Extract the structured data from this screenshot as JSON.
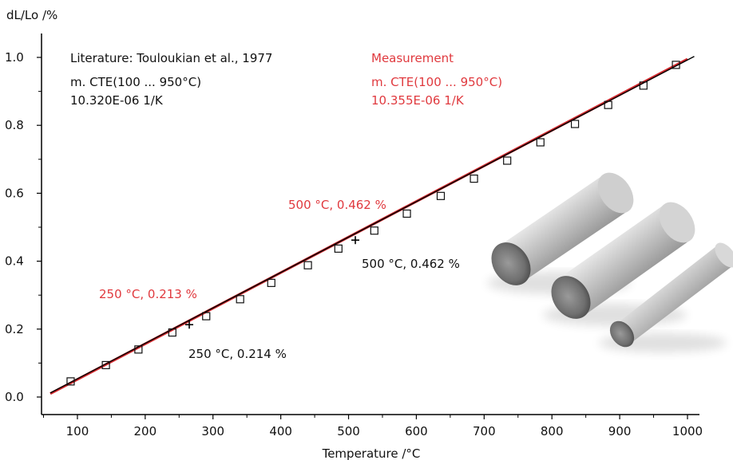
{
  "chart_data": {
    "type": "line",
    "title": "",
    "xlabel": "Temperature /°C",
    "ylabel": "dL/Lo /%",
    "xlim": [
      50,
      1010
    ],
    "ylim": [
      -0.02,
      1.06
    ],
    "x_ticks": [
      100,
      200,
      300,
      400,
      500,
      600,
      700,
      800,
      900,
      1000
    ],
    "x_tick_labels": [
      "100",
      "200",
      "300",
      "400",
      "500",
      "600",
      "700",
      "800",
      "900",
      "1000"
    ],
    "y_ticks": [
      0.0,
      0.2,
      0.4,
      0.6,
      0.8,
      1.0
    ],
    "y_tick_labels": [
      "0.0",
      "0.2",
      "0.4",
      "0.6",
      "0.8",
      "1.0"
    ],
    "grid": false,
    "series": [
      {
        "role": "literature",
        "color": "#000000",
        "style": "line with square markers",
        "x": [
          90,
          142,
          190,
          240,
          290,
          340,
          386,
          440,
          485,
          538,
          586,
          636,
          685,
          734,
          783,
          834,
          883,
          935,
          983
        ],
        "y": [
          0.046,
          0.094,
          0.14,
          0.19,
          0.238,
          0.288,
          0.336,
          0.388,
          0.437,
          0.49,
          0.54,
          0.592,
          0.643,
          0.696,
          0.75,
          0.804,
          0.86,
          0.917,
          0.978
        ]
      },
      {
        "role": "measurement",
        "color": "#d0262b",
        "style": "line",
        "x": [
          60,
          1000
        ],
        "y": [
          0.01,
          0.995
        ]
      }
    ],
    "literature_line": {
      "x": [
        60,
        1010
      ],
      "y": [
        0.012,
        1.003
      ]
    },
    "markers_cross": [
      {
        "x": 265,
        "y": 0.213
      },
      {
        "x": 510,
        "y": 0.462
      }
    ],
    "annotations": {
      "literature_title": "Literature: Touloukian et al., 1977",
      "literature_cte_label": "m. CTE(100 ... 950°C)",
      "literature_cte_value": "10.320E-06 1/K",
      "measurement_title": "Measurement",
      "measurement_cte_label": "m. CTE(100 ... 950°C)",
      "measurement_cte_value": "10.355E-06 1/K",
      "point_250_measurement": "250 °C, 0.213 %",
      "point_250_literature": "250 °C, 0.214 %",
      "point_500_measurement": "500 °C, 0.462 %",
      "point_500_literature": "500 °C, 0.462 %"
    },
    "colors": {
      "literature": "#000000",
      "measurement": "#d0262b",
      "measurement_text": "#e0393e"
    }
  },
  "photo": {
    "icon": "metal-cylinders-photo",
    "count": 3
  }
}
